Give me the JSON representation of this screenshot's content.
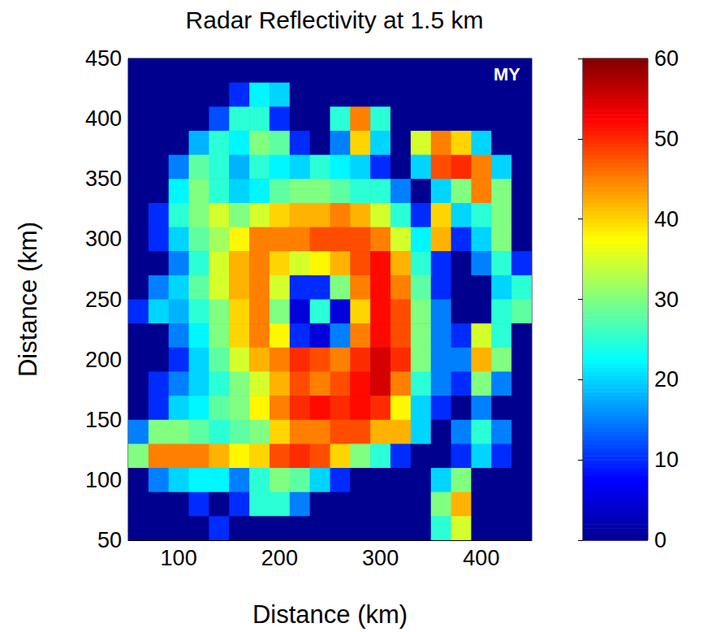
{
  "chart_data": {
    "type": "heatmap",
    "title": "Radar Reflectivity at 1.5 km",
    "annotation": "MY",
    "xlabel": "Distance (km)",
    "ylabel": "Distance (km)",
    "xlim": [
      50,
      450
    ],
    "xticks": [
      100,
      200,
      300,
      400
    ],
    "ylim": [
      50,
      450
    ],
    "yticks": [
      50,
      100,
      150,
      200,
      250,
      300,
      350,
      400,
      450
    ],
    "cell_x": [
      60,
      80,
      100,
      120,
      140,
      160,
      180,
      200,
      220,
      240,
      260,
      280,
      300,
      320,
      340,
      360,
      380,
      400,
      420,
      440
    ],
    "cell_y": [
      440,
      420,
      400,
      380,
      360,
      340,
      320,
      300,
      280,
      260,
      240,
      220,
      200,
      180,
      160,
      140,
      120,
      100,
      80,
      60
    ],
    "cells": [
      [
        0,
        0,
        0,
        0,
        0,
        0,
        0,
        0,
        0,
        0,
        0,
        0,
        0,
        0,
        0,
        0,
        0,
        0,
        0,
        0
      ],
      [
        0,
        0,
        0,
        0,
        0,
        10,
        22,
        20,
        0,
        0,
        0,
        0,
        0,
        0,
        0,
        0,
        0,
        0,
        0,
        0
      ],
      [
        0,
        0,
        0,
        0,
        12,
        25,
        25,
        10,
        0,
        0,
        25,
        45,
        25,
        0,
        0,
        0,
        0,
        0,
        0,
        0
      ],
      [
        0,
        0,
        0,
        18,
        25,
        22,
        30,
        28,
        10,
        0,
        15,
        40,
        20,
        0,
        35,
        45,
        40,
        20,
        0,
        0
      ],
      [
        0,
        0,
        15,
        28,
        25,
        18,
        25,
        22,
        20,
        25,
        22,
        20,
        10,
        0,
        20,
        48,
        50,
        45,
        20,
        0
      ],
      [
        0,
        0,
        22,
        30,
        25,
        20,
        22,
        28,
        30,
        30,
        28,
        25,
        25,
        15,
        0,
        20,
        30,
        45,
        30,
        0
      ],
      [
        0,
        10,
        25,
        30,
        35,
        30,
        35,
        40,
        42,
        42,
        45,
        42,
        35,
        25,
        10,
        40,
        20,
        25,
        30,
        0
      ],
      [
        0,
        10,
        20,
        28,
        32,
        38,
        45,
        45,
        45,
        48,
        48,
        48,
        45,
        35,
        22,
        42,
        10,
        20,
        30,
        0
      ],
      [
        0,
        0,
        15,
        25,
        35,
        42,
        45,
        40,
        35,
        38,
        42,
        48,
        52,
        42,
        25,
        10,
        0,
        15,
        25,
        10
      ],
      [
        0,
        15,
        20,
        28,
        35,
        42,
        45,
        35,
        10,
        10,
        30,
        45,
        52,
        45,
        28,
        10,
        0,
        0,
        20,
        25
      ],
      [
        10,
        20,
        18,
        25,
        30,
        40,
        45,
        30,
        5,
        25,
        5,
        40,
        52,
        48,
        30,
        15,
        0,
        0,
        25,
        28
      ],
      [
        0,
        0,
        15,
        22,
        30,
        40,
        45,
        38,
        10,
        5,
        15,
        45,
        52,
        48,
        30,
        15,
        10,
        35,
        25,
        0
      ],
      [
        0,
        0,
        10,
        20,
        28,
        35,
        42,
        45,
        50,
        48,
        45,
        50,
        55,
        50,
        30,
        15,
        15,
        42,
        30,
        0
      ],
      [
        0,
        10,
        15,
        20,
        25,
        30,
        35,
        42,
        48,
        45,
        48,
        52,
        55,
        45,
        25,
        15,
        10,
        30,
        15,
        0
      ],
      [
        0,
        10,
        20,
        22,
        28,
        30,
        38,
        45,
        50,
        52,
        50,
        52,
        50,
        38,
        20,
        10,
        0,
        15,
        0,
        0
      ],
      [
        15,
        30,
        30,
        28,
        25,
        28,
        30,
        40,
        45,
        45,
        48,
        48,
        42,
        42,
        20,
        0,
        15,
        25,
        15,
        0
      ],
      [
        30,
        45,
        45,
        45,
        42,
        38,
        40,
        48,
        50,
        48,
        40,
        30,
        25,
        10,
        0,
        0,
        10,
        20,
        10,
        0
      ],
      [
        0,
        15,
        20,
        22,
        22,
        15,
        25,
        30,
        28,
        20,
        10,
        0,
        0,
        0,
        0,
        20,
        30,
        0,
        0,
        0
      ],
      [
        0,
        0,
        0,
        10,
        0,
        10,
        25,
        25,
        15,
        0,
        0,
        0,
        0,
        0,
        0,
        30,
        42,
        0,
        0,
        0
      ],
      [
        0,
        0,
        0,
        0,
        10,
        0,
        0,
        0,
        0,
        0,
        0,
        0,
        0,
        0,
        0,
        25,
        35,
        0,
        0,
        0
      ]
    ],
    "colorbar_lim": [
      0,
      60
    ],
    "colorbar_ticks": [
      0,
      10,
      20,
      30,
      40,
      50,
      60
    ]
  }
}
